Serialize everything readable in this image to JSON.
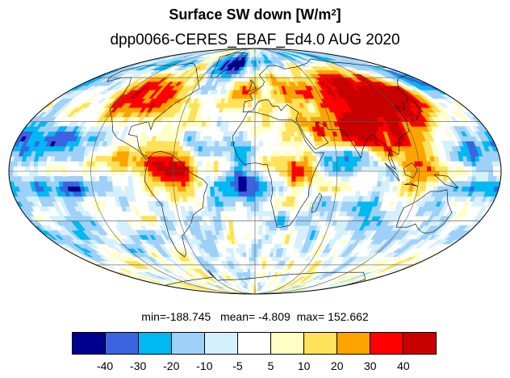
{
  "title": {
    "text": "Surface SW down [W/m",
    "superscript": "2",
    "suffix": "]"
  },
  "subtitle": "dpp0066-CERES_EBAF_Ed4.0  AUG 2020",
  "stats": {
    "min_label": "min=",
    "min": "-188.745",
    "mean_label": "mean=",
    "mean": "-4.809",
    "max_label": "max=",
    "max": "152.662"
  },
  "map": {
    "projection": "Mollweide",
    "graticule_lat_deg": [
      -60,
      -30,
      0,
      30,
      60
    ],
    "graticule_lon_deg": [
      -120,
      -60,
      0,
      60,
      120
    ]
  },
  "colorbar": {
    "colors": [
      "#00008f",
      "#3c63e0",
      "#00b8f2",
      "#9fd0f8",
      "#d4f0fc",
      "#ffffff",
      "#ffffc4",
      "#ffe15a",
      "#ffa300",
      "#ff0000",
      "#c80000"
    ],
    "tick_labels": [
      "-40",
      "-30",
      "-20",
      "-10",
      "-5",
      "5",
      "10",
      "20",
      "30",
      "40"
    ]
  },
  "chart_data": {
    "type": "heatmap",
    "title": "Surface SW down [W/m2]",
    "subtitle": "dpp0066-CERES_EBAF_Ed4.0  AUG 2020",
    "levels": [
      -40,
      -30,
      -20,
      -10,
      -5,
      5,
      10,
      20,
      30,
      40
    ],
    "min": -188.745,
    "mean": -4.809,
    "max": 152.662
  }
}
